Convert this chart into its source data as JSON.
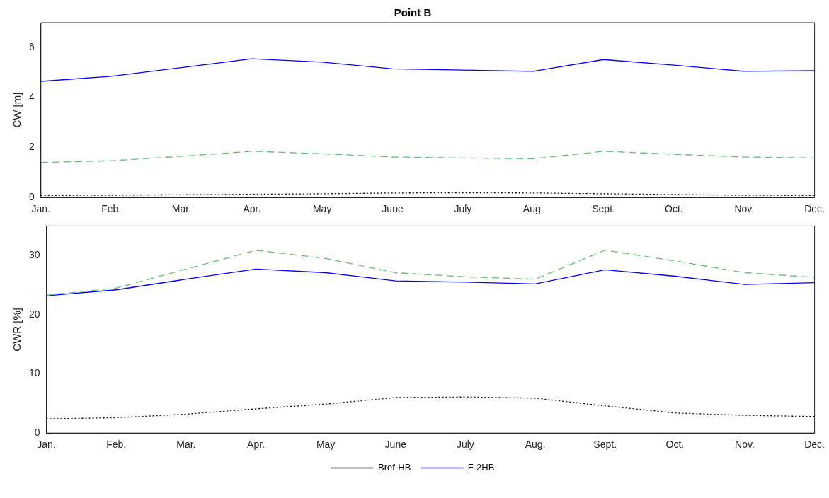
{
  "chart_data": [
    {
      "type": "line",
      "title": "Point B",
      "ylabel": "CW [m]",
      "categories": [
        "Jan.",
        "Feb.",
        "Mar.",
        "Apr.",
        "May",
        "June",
        "July",
        "Aug.",
        "Sept.",
        "Oct.",
        "Nov.",
        "Dec."
      ],
      "ylim": [
        0,
        7
      ],
      "yticks": [
        0,
        2,
        4,
        6
      ],
      "grid": false,
      "legend": false,
      "marker": "none",
      "series": [
        {
          "color": "#5fbf73",
          "line_style": "dashed",
          "values": [
            1.4,
            1.47,
            1.65,
            1.85,
            1.75,
            1.62,
            1.58,
            1.55,
            1.85,
            1.73,
            1.62,
            1.58
          ]
        },
        {
          "color": "#000000",
          "line_style": "dotted",
          "values": [
            0.08,
            0.09,
            0.11,
            0.13,
            0.15,
            0.18,
            0.19,
            0.18,
            0.15,
            0.12,
            0.09,
            0.08
          ]
        },
        {
          "color": "#0000ff",
          "line_style": "solid",
          "values": [
            4.65,
            4.85,
            5.2,
            5.55,
            5.42,
            5.15,
            5.1,
            5.05,
            5.52,
            5.3,
            5.05,
            5.08
          ]
        }
      ]
    },
    {
      "type": "line",
      "ylabel": "CWR [%]",
      "categories": [
        "Jan.",
        "Feb.",
        "Mar.",
        "Apr.",
        "May",
        "June",
        "July",
        "Aug.",
        "Sept.",
        "Oct.",
        "Nov.",
        "Dec."
      ],
      "ylim": [
        0,
        35
      ],
      "yticks": [
        0,
        10,
        20,
        30
      ],
      "grid": false,
      "legend": "bottom",
      "marker": "none",
      "series": [
        {
          "color": "#5fbf73",
          "line_style": "dashed",
          "values": [
            23.3,
            24.5,
            27.7,
            30.9,
            29.5,
            27.1,
            26.4,
            26.0,
            30.9,
            29.1,
            27.1,
            26.3
          ]
        },
        {
          "name": "Bref-HB",
          "color": "#000000",
          "line_style": "dotted",
          "values": [
            2.4,
            2.6,
            3.2,
            4.1,
            4.9,
            6.0,
            6.1,
            5.9,
            4.6,
            3.4,
            3.0,
            2.8
          ]
        },
        {
          "name": "F-2HB",
          "color": "#0000ff",
          "line_style": "solid",
          "values": [
            23.2,
            24.2,
            26.0,
            27.7,
            27.1,
            25.7,
            25.5,
            25.2,
            27.6,
            26.5,
            25.1,
            25.4
          ]
        }
      ]
    }
  ]
}
